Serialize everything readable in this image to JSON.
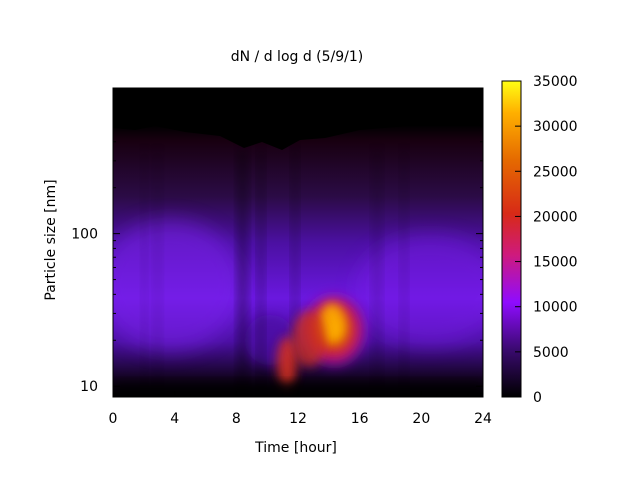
{
  "chart_data": {
    "type": "heatmap",
    "title": "dN / d log d (5/9/1)",
    "xlabel": "Time [hour]",
    "ylabel": "Particle size [nm]",
    "xlim": [
      0,
      24
    ],
    "ylim": [
      8.5,
      900
    ],
    "y_scale": "log",
    "x_ticks": [
      0,
      4,
      8,
      12,
      16,
      20,
      24
    ],
    "x_tick_labels": [
      "0",
      "4",
      "8",
      "12",
      "16",
      "20",
      "24"
    ],
    "y_ticks": [
      10,
      100
    ],
    "y_tick_labels": [
      "10",
      "100"
    ],
    "colorbar": {
      "range": [
        0,
        35000
      ],
      "ticks": [
        0,
        5000,
        10000,
        15000,
        20000,
        25000,
        30000,
        35000
      ],
      "tick_labels": [
        "0",
        "5000",
        "10000",
        "15000",
        "20000",
        "25000",
        "30000",
        "35000"
      ],
      "colormap": "black-purple-red-yellow"
    },
    "features": [
      {
        "t": 14.3,
        "d": 25,
        "value": 30000
      },
      {
        "t": 11.3,
        "d": 14,
        "value": 18000
      },
      {
        "t": 2.5,
        "d": 50,
        "value": 9000
      },
      {
        "t": 20,
        "d": 45,
        "value": 8000
      },
      {
        "t": 0.5,
        "d": 9,
        "value": 0
      }
    ]
  }
}
